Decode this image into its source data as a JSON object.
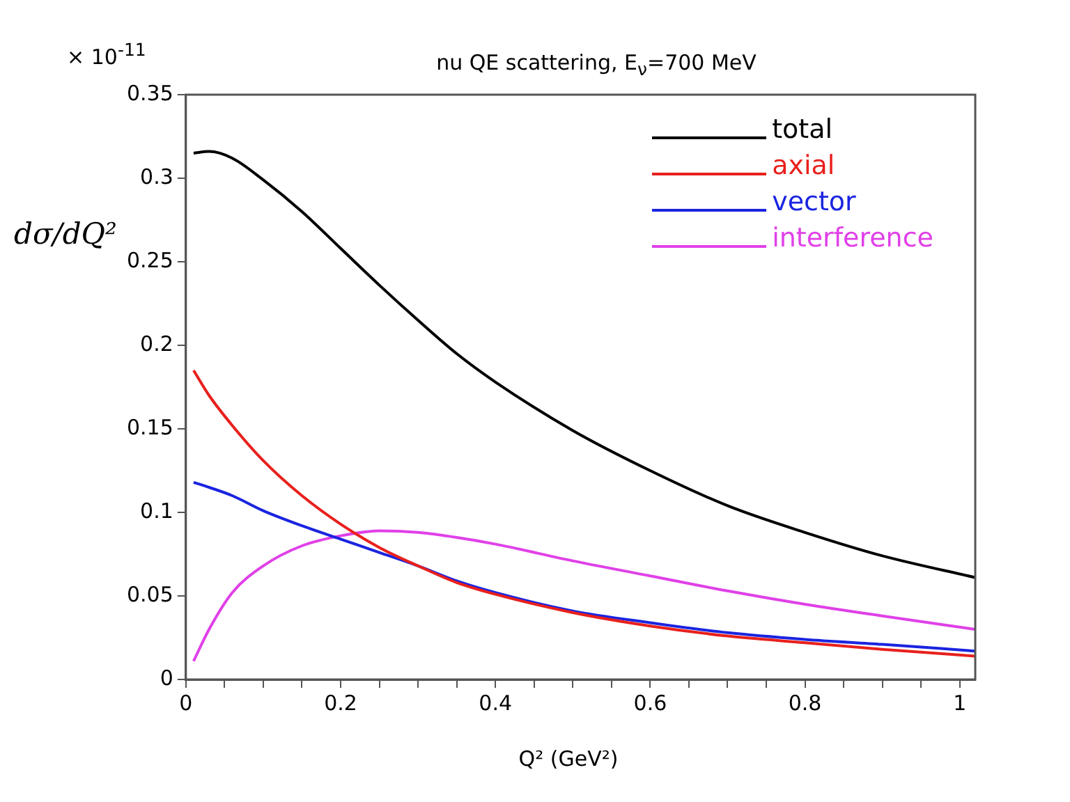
{
  "chart_data": {
    "type": "line",
    "title": "nu QE scattering, E$_{ν}$=700 MeV",
    "xlabel": "Q² (GeV²)",
    "ylabel": "dσ/dQ²",
    "annotations": [
      "× 10$^{-11}$"
    ],
    "x": [
      0.01,
      0.03,
      0.06,
      0.1,
      0.15,
      0.2,
      0.25,
      0.3,
      0.35,
      0.4,
      0.5,
      0.6,
      0.7,
      0.8,
      0.9,
      1.02
    ],
    "series": [
      {
        "name": "total",
        "color": "#000000",
        "values": [
          0.315,
          0.316,
          0.312,
          0.299,
          0.28,
          0.258,
          0.236,
          0.215,
          0.195,
          0.178,
          0.149,
          0.125,
          0.104,
          0.088,
          0.074,
          0.061
        ]
      },
      {
        "name": "axial",
        "color": "#e8201c",
        "values": [
          0.185,
          0.17,
          0.152,
          0.131,
          0.11,
          0.093,
          0.079,
          0.068,
          0.058,
          0.051,
          0.04,
          0.032,
          0.026,
          0.022,
          0.018,
          0.014
        ]
      },
      {
        "name": "vector",
        "color": "#1a24e0",
        "values": [
          0.118,
          0.115,
          0.11,
          0.101,
          0.092,
          0.084,
          0.076,
          0.068,
          0.059,
          0.052,
          0.041,
          0.034,
          0.028,
          0.024,
          0.021,
          0.017
        ]
      },
      {
        "name": "interference",
        "color": "#e040e8",
        "values": [
          0.011,
          0.03,
          0.052,
          0.068,
          0.08,
          0.086,
          0.089,
          0.088,
          0.085,
          0.081,
          0.071,
          0.062,
          0.053,
          0.045,
          0.038,
          0.03
        ]
      }
    ],
    "xlim": [
      0,
      1.02
    ],
    "xticks": [
      0,
      {
        "value": 0.05,
        "label": null
      },
      {
        "value": 0.1,
        "label": null
      },
      {
        "value": 0.15,
        "label": null
      },
      0.2,
      {
        "value": 0.25,
        "label": null
      },
      {
        "value": 0.3,
        "label": null
      },
      {
        "value": 0.35,
        "label": null
      },
      0.4,
      {
        "value": 0.45,
        "label": null
      },
      {
        "value": 0.5,
        "label": null
      },
      {
        "value": 0.55,
        "label": null
      },
      0.6,
      {
        "value": 0.65,
        "label": null
      },
      {
        "value": 0.7,
        "label": null
      },
      {
        "value": 0.75,
        "label": null
      },
      0.8,
      {
        "value": 0.85,
        "label": null
      },
      {
        "value": 0.9,
        "label": null
      },
      {
        "value": 0.95,
        "label": null
      },
      1
    ],
    "ylim": [
      0,
      0.35
    ],
    "yticks": [
      0,
      0.05,
      0.1,
      0.15,
      0.2,
      0.25,
      0.3,
      0.35
    ],
    "grid": false,
    "legend": "top right",
    "marker": "none",
    "line_style": "solid"
  }
}
